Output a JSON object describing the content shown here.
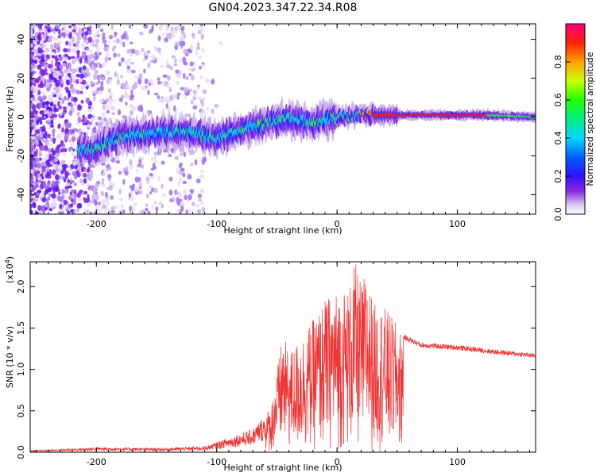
{
  "chart_data": [
    {
      "type": "heatmap",
      "title": "GN04.2023.347.22.34.R08",
      "xlabel": "Height of straight line (km)",
      "ylabel": "Frequency (Hz)",
      "xlim": [
        -255,
        165
      ],
      "ylim": [
        -50,
        48
      ],
      "x_ticks": [
        -200,
        -100,
        0,
        100
      ],
      "y_ticks": [
        -40,
        -20,
        0,
        20,
        40
      ],
      "colorbar": {
        "label": "Normalized spectral amplitude",
        "range": [
          0.0,
          1.0
        ],
        "ticks": [
          0.0,
          0.2,
          0.4,
          0.6,
          0.8
        ],
        "colormap": "rainbow (white/purple low to red/magenta high)"
      },
      "ridge": {
        "x": [
          -205,
          -180,
          -150,
          -120,
          -100,
          -80,
          -60,
          -40,
          -20,
          0,
          20,
          40,
          60,
          80,
          100,
          120,
          165
        ],
        "y": [
          -17,
          -10,
          -8,
          -8,
          -11,
          -7,
          -3,
          -1,
          -3,
          0,
          1,
          1,
          1,
          1,
          1,
          1,
          0
        ]
      },
      "grid": false
    },
    {
      "type": "line",
      "title": "",
      "xlabel": "Height of straight line (km)",
      "ylabel": "SNR (10 * v/v)",
      "y_multiplier": "(x10^4)",
      "y_multiplier_base": "(x10",
      "y_multiplier_exp": "4",
      "xlim": [
        -255,
        165
      ],
      "ylim": [
        0.0,
        2.3
      ],
      "x_ticks": [
        -200,
        -100,
        0,
        100
      ],
      "y_ticks": [
        0.0,
        0.5,
        1.0,
        1.5,
        2.0
      ],
      "color": "#ee3333",
      "series": [
        {
          "envelope_x": [
            -255,
            -200,
            -150,
            -110,
            -90,
            -70,
            -55,
            -45,
            -40,
            -30,
            -20,
            -10,
            0,
            10,
            15,
            20,
            25,
            30,
            40,
            50,
            55,
            70,
            100,
            130,
            165
          ],
          "envelope_y": [
            0.02,
            0.06,
            0.05,
            0.07,
            0.18,
            0.28,
            0.55,
            1.45,
            1.2,
            1.4,
            1.6,
            1.85,
            1.95,
            2.0,
            2.3,
            2.05,
            2.2,
            1.8,
            1.75,
            1.55,
            1.4,
            1.3,
            1.27,
            1.22,
            1.17
          ]
        }
      ],
      "grid": false
    }
  ]
}
